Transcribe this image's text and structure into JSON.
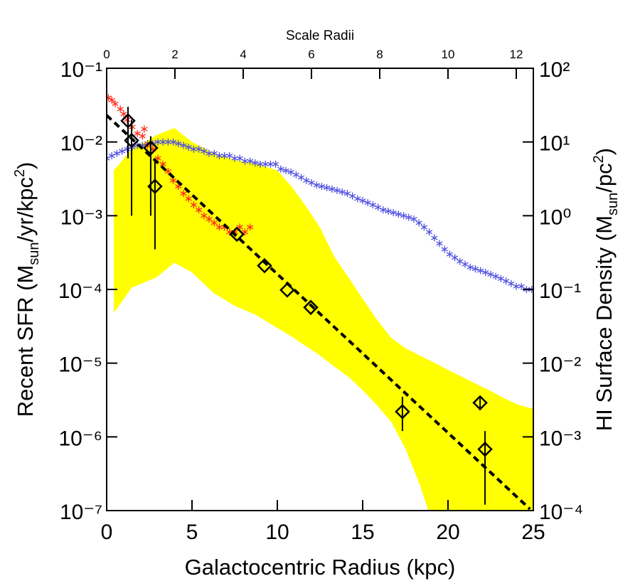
{
  "chart_data": {
    "type": "scatter",
    "x_label": "Galactocentric Radius (kpc)",
    "x2_label": "Scale Radii",
    "y_label": [
      "Recent SFR (M",
      "sun",
      "/yr/kpc",
      "2",
      ")"
    ],
    "y2_label": [
      "HI Surface Density (M",
      "sun",
      "/pc",
      "2",
      ")"
    ],
    "xlim": [
      0,
      25
    ],
    "xticks": [
      0,
      5,
      10,
      15,
      20,
      25
    ],
    "x2lim": [
      0,
      12.5
    ],
    "x2ticks": [
      0,
      2,
      4,
      6,
      8,
      10,
      12
    ],
    "ylog": true,
    "ylim": [
      1e-07,
      0.1
    ],
    "yticks": [
      {
        "value": 0.1,
        "label": "10⁻¹"
      },
      {
        "value": 0.01,
        "label": "10⁻²"
      },
      {
        "value": 0.001,
        "label": "10⁻³"
      },
      {
        "value": 0.0001,
        "label": "10⁻⁴"
      },
      {
        "value": 1e-05,
        "label": "10⁻⁵"
      },
      {
        "value": 1e-06,
        "label": "10⁻⁶"
      },
      {
        "value": 1e-07,
        "label": "10⁻⁷"
      }
    ],
    "y2log": true,
    "y2lim": [
      0.0001,
      100
    ],
    "y2ticks": [
      {
        "value": 100,
        "label": "10²"
      },
      {
        "value": 10,
        "label": "10¹"
      },
      {
        "value": 1,
        "label": "10⁰"
      },
      {
        "value": 0.1,
        "label": "10⁻¹"
      },
      {
        "value": 0.01,
        "label": "10⁻²"
      },
      {
        "value": 0.001,
        "label": "10⁻³"
      },
      {
        "value": 0.0001,
        "label": "10⁻⁴"
      }
    ],
    "series": [
      {
        "marker": "band",
        "color": "#ffff00",
        "axis": "y",
        "x": [
          0.42,
          1.46,
          2.92,
          3.96,
          5.0,
          6.25,
          7.5,
          8.75,
          10.0,
          10.83,
          11.67,
          12.5,
          13.33,
          14.17,
          15.0,
          15.83,
          16.67,
          17.5,
          18.33,
          19.17,
          20.0,
          20.83,
          21.67,
          22.5,
          23.33,
          24.17,
          25
        ],
        "values": [
          0.0041,
          0.008,
          0.0124,
          0.0155,
          0.01,
          0.0071,
          0.0057,
          0.0051,
          0.0041,
          0.0025,
          0.00135,
          0.00069,
          0.00028,
          0.000146,
          7.5e-05,
          3.9e-05,
          2.2e-05,
          1.6e-05,
          1.27e-05,
          1.02e-05,
          8.1e-06,
          6.5e-06,
          5.2e-06,
          4.2e-06,
          3.3e-06,
          2.7e-06,
          2.4e-06
        ],
        "lower": [
          4.8e-05,
          0.000105,
          0.000146,
          0.00023,
          0.00017,
          9e-05,
          6e-05,
          4.5e-05,
          3e-05,
          2.3e-05,
          1.7e-05,
          1.27e-05,
          9e-06,
          6.5e-06,
          4.3e-06,
          2.7e-06,
          1.6e-06,
          7e-07,
          2.3e-07,
          6e-08,
          5e-08,
          5e-08,
          5e-08,
          5e-08,
          5e-08,
          5e-08,
          5e-08
        ]
      },
      {
        "marker": "asterisk",
        "color": "#5050e0",
        "axis": "y2",
        "x": [
          0,
          0.3,
          0.6,
          0.9,
          1.2,
          1.5,
          1.8,
          2.1,
          2.4,
          2.7,
          3,
          3.3,
          3.6,
          3.9,
          4.2,
          4.5,
          4.8,
          5.1,
          5.4,
          5.7,
          6,
          6.3,
          6.6,
          6.9,
          7.2,
          7.5,
          7.8,
          8.1,
          8.4,
          8.7,
          9,
          9.3,
          9.6,
          9.9,
          10.2,
          10.5,
          10.8,
          11.1,
          11.4,
          11.7,
          12,
          12.3,
          12.6,
          12.9,
          13.2,
          13.5,
          13.8,
          14.1,
          14.4,
          14.7,
          15,
          15.3,
          15.6,
          15.9,
          16.2,
          16.5,
          16.8,
          17.1,
          17.4,
          17.7,
          18,
          18.3,
          18.6,
          18.9,
          19.2,
          19.5,
          19.8,
          20.1,
          20.4,
          20.7,
          21,
          21.3,
          21.6,
          21.9,
          22.2,
          22.5,
          22.8,
          23.1,
          23.4,
          23.7,
          24,
          24.3,
          24.6,
          24.9
        ],
        "values": [
          6,
          6.5,
          7,
          7.5,
          8,
          8.5,
          9,
          9,
          9.5,
          9.5,
          10,
          10,
          10,
          10,
          9.5,
          9,
          8.5,
          8,
          8,
          7.5,
          7,
          7,
          6.5,
          6.5,
          6.5,
          6,
          6,
          5.5,
          5.5,
          5.2,
          5,
          5,
          5,
          5,
          4.3,
          4.1,
          3.9,
          3.6,
          3.3,
          3.0,
          2.8,
          2.6,
          2.5,
          2.4,
          2.3,
          2.2,
          2.1,
          2.0,
          1.85,
          1.7,
          1.6,
          1.5,
          1.4,
          1.3,
          1.2,
          1.15,
          1.1,
          1.05,
          1.0,
          0.95,
          0.9,
          0.8,
          0.7,
          0.6,
          0.5,
          0.42,
          0.35,
          0.3,
          0.27,
          0.24,
          0.22,
          0.2,
          0.19,
          0.18,
          0.17,
          0.16,
          0.15,
          0.14,
          0.13,
          0.12,
          0.11,
          0.11,
          0.1,
          0.1
        ]
      },
      {
        "marker": "asterisk",
        "color": "#ff2a1a",
        "axis": "y",
        "x": [
          0.1,
          0.3,
          0.5,
          0.8,
          1.0,
          1.2,
          1.5,
          1.8,
          2.1,
          2.2,
          2.4,
          2.7,
          3.0,
          3.3,
          3.6,
          3.9,
          4.2,
          4.5,
          4.8,
          5.1,
          5.4,
          5.7,
          6.0,
          6.3,
          6.6,
          6.9,
          7.2,
          7.5,
          7.8,
          8.1,
          8.4
        ],
        "values": [
          0.04,
          0.037,
          0.033,
          0.028,
          0.024,
          0.02,
          0.016,
          0.013,
          0.012,
          0.015,
          0.009,
          0.008,
          0.006,
          0.005,
          0.004,
          0.003,
          0.0025,
          0.002,
          0.0017,
          0.0014,
          0.0012,
          0.001,
          0.0009,
          0.0008,
          0.0007,
          0.0007,
          0.0006,
          0.0006,
          0.0007,
          0.0006,
          0.0007
        ]
      },
      {
        "marker": "dashed",
        "color": "#000000",
        "axis": "y",
        "x": [
          0,
          24.8
        ],
        "values": [
          0.023,
          1.05e-07
        ]
      },
      {
        "marker": "diamond",
        "color": "#000000",
        "axis": "y",
        "x": [
          1.25,
          1.46,
          2.58,
          2.83,
          7.63,
          9.25,
          10.58,
          11.96,
          17.33,
          21.88,
          22.17
        ],
        "values": [
          0.0194,
          0.0105,
          0.0083,
          0.0025,
          0.00056,
          0.00021,
          9.8e-05,
          5.7e-05,
          2.2e-06,
          2.9e-06,
          6.8e-07
        ],
        "ylow": [
          0.006,
          0.001,
          0.001,
          0.00035,
          null,
          null,
          null,
          null,
          1.2e-06,
          2.3e-06,
          1.2e-07
        ],
        "yhigh": [
          0.03,
          0.02,
          0.012,
          0.006,
          null,
          null,
          null,
          null,
          3.5e-06,
          3.5e-06,
          1.2e-06
        ]
      }
    ]
  }
}
